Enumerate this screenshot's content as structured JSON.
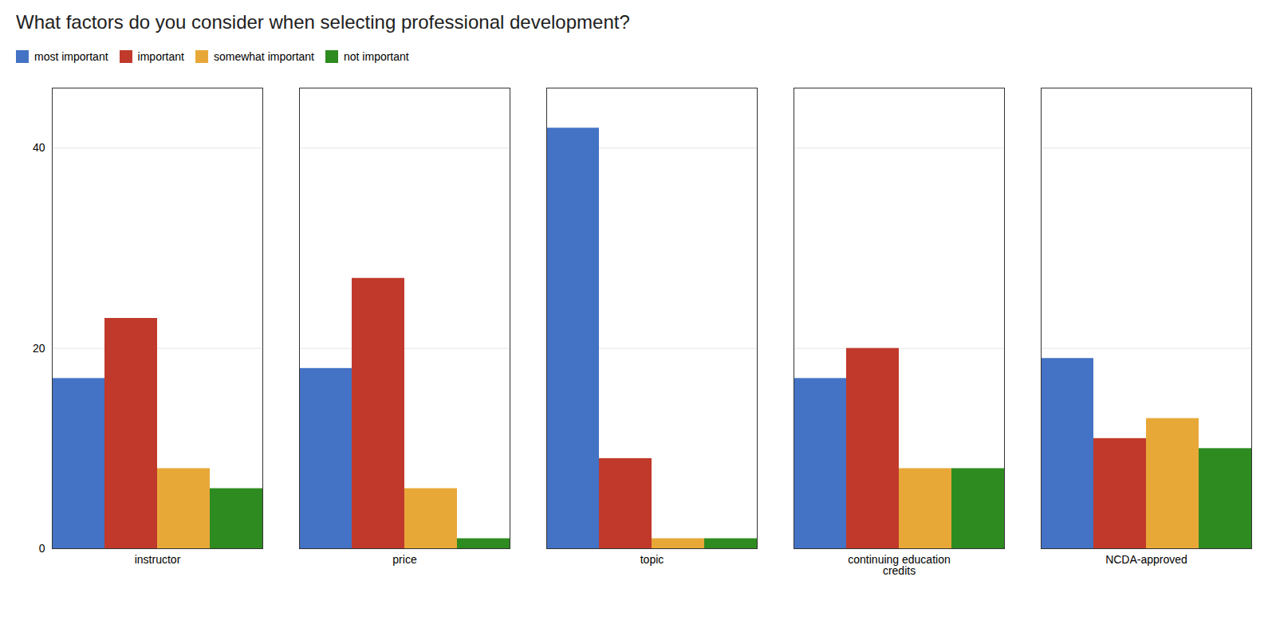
{
  "chart_data": {
    "type": "bar",
    "title": "What factors do you consider when selecting professional development?",
    "categories": [
      "instructor",
      "price",
      "topic",
      "continuing education\ncredits",
      "NCDA-approved"
    ],
    "series": [
      {
        "name": "most important",
        "color": "#4472C4",
        "values": [
          17,
          18,
          42,
          17,
          19
        ]
      },
      {
        "name": "important",
        "color": "#C0392B",
        "values": [
          23,
          27,
          9,
          20,
          11
        ]
      },
      {
        "name": "somewhat important",
        "color": "#E8A838",
        "values": [
          8,
          6,
          1,
          8,
          13
        ]
      },
      {
        "name": "not important",
        "color": "#2E8B20",
        "values": [
          6,
          1,
          1,
          8,
          10
        ]
      }
    ],
    "ylim": [
      0,
      46
    ],
    "yticks": [
      0,
      20,
      40
    ],
    "grid": true,
    "legend": "top-left"
  }
}
